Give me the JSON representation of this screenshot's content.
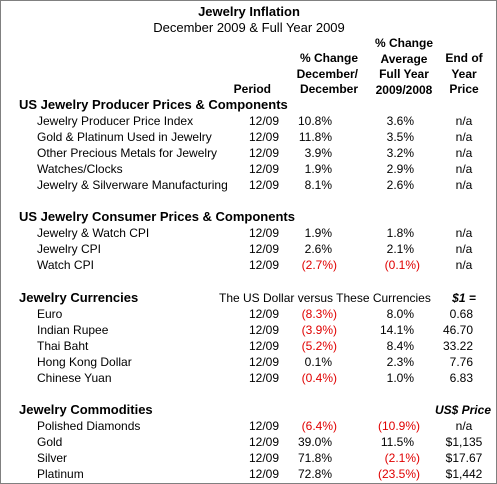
{
  "title": "Jewelry Inflation",
  "subtitle": "December 2009 & Full Year 2009",
  "header": {
    "period": "Period",
    "change": [
      "% Change",
      "December/",
      "December"
    ],
    "average": [
      "% Change",
      "Average",
      "Full Year",
      "2009/2008"
    ],
    "price": [
      "End of",
      "Year",
      "Price"
    ]
  },
  "sections": [
    {
      "title": "US Jewelry Producer Prices & Components",
      "rows": [
        [
          "Jewelry Producer Price Index",
          "12/09",
          "10.8%",
          "3.6%",
          "n/a"
        ],
        [
          "Gold & Platinum Used in Jewelry",
          "12/09",
          "11.8%",
          "3.5%",
          "n/a"
        ],
        [
          "Other Precious Metals for Jewelry",
          "12/09",
          "3.9%",
          "3.2%",
          "n/a"
        ],
        [
          "Watches/Clocks",
          "12/09",
          "1.9%",
          "2.9%",
          "n/a"
        ],
        [
          "Jewelry & Silverware Manufacturing",
          "12/09",
          "8.1%",
          "2.6%",
          "n/a"
        ]
      ]
    },
    {
      "title": "US Jewelry Consumer Prices & Components",
      "rows": [
        [
          "Jewelry & Watch CPI",
          "12/09",
          "1.9%",
          "1.8%",
          "n/a"
        ],
        [
          "Jewelry CPI",
          "12/09",
          "2.6%",
          "2.1%",
          "n/a"
        ],
        [
          "Watch CPI",
          "12/09",
          "(2.7%)",
          "(0.1%)",
          "n/a"
        ]
      ]
    },
    {
      "title": "Jewelry Currencies",
      "note": "The US Dollar versus These Currencies",
      "price_heading": "$1 =",
      "rows": [
        [
          "Euro",
          "12/09",
          "(8.3%)",
          "8.0%",
          "0.68"
        ],
        [
          "Indian Rupee",
          "12/09",
          "(3.9%)",
          "14.1%",
          "46.70"
        ],
        [
          "Thai Baht",
          "12/09",
          "(5.2%)",
          "8.4%",
          "33.22"
        ],
        [
          "Hong Kong Dollar",
          "12/09",
          "0.1%",
          "2.3%",
          "7.76"
        ],
        [
          "Chinese Yuan",
          "12/09",
          "(0.4%)",
          "1.0%",
          "6.83"
        ]
      ]
    },
    {
      "title": "Jewelry Commodities",
      "price_heading": "US$ Price",
      "rows": [
        [
          "Polished Diamonds",
          "12/09",
          "(6.4%)",
          "(10.9%)",
          "n/a"
        ],
        [
          "Gold",
          "12/09",
          "39.0%",
          "11.5%",
          "$1,135"
        ],
        [
          "Silver",
          "12/09",
          "71.8%",
          "(2.1%)",
          "$17.67"
        ],
        [
          "Platinum",
          "12/09",
          "72.8%",
          "(23.5%)",
          "$1,442"
        ]
      ]
    }
  ]
}
